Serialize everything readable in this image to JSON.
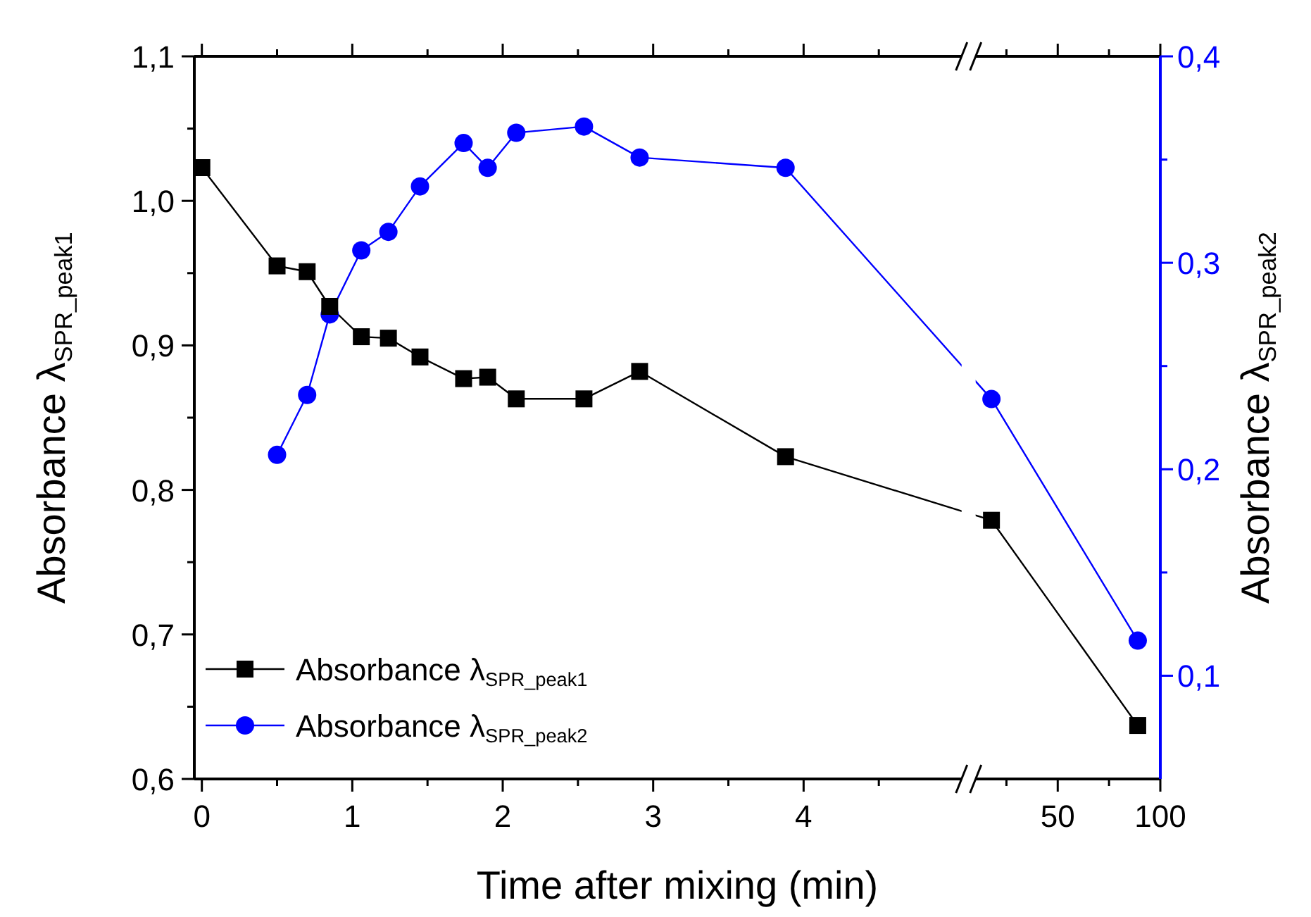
{
  "chart_data": [
    {
      "type": "line",
      "xlabel": "Time after mixing (min)",
      "ylabel": "Absorbance λ$_{SPR_peak1}$",
      "legend": "bottom left",
      "tick_labels": [
        "x",
        "y"
      ],
      "line_style": "solid",
      "xlim": [
        -0.05,
        5.05
      ],
      "xticks": [
        0,
        {
          "value": 0.5,
          "label": null
        },
        1,
        {
          "value": 1.5,
          "label": null
        },
        2,
        {
          "value": 2.5,
          "label": null
        },
        3,
        {
          "value": 3.5,
          "label": null
        },
        4,
        {
          "value": 4.5,
          "label": null
        }
      ],
      "ylim": [
        0.6,
        1.1
      ],
      "yticks": [
        {
          "value": 0.6,
          "label": "0,6"
        },
        {
          "value": 0.65,
          "label": null
        },
        {
          "value": 0.7,
          "label": "0,7"
        },
        {
          "value": 0.75,
          "label": null
        },
        {
          "value": 0.8,
          "label": "0,8"
        },
        {
          "value": 0.85,
          "label": null
        },
        {
          "value": 0.9,
          "label": "0,9"
        },
        {
          "value": 0.95,
          "label": null
        },
        {
          "value": 1.0,
          "label": "1,0"
        },
        {
          "value": 1.05,
          "label": null
        },
        {
          "value": 1.1,
          "label": "1,1"
        }
      ],
      "y2lim": [
        0.05,
        0.4
      ],
      "series": [
        {
          "name": "Absorbance λ$_{SPR_peak1}$",
          "color": "#000000",
          "marker": "square",
          "x": [
            0,
            0.5,
            0.7,
            0.85,
            1.06,
            1.24,
            1.45,
            1.74,
            1.9,
            2.09,
            2.54,
            2.91,
            3.88
          ],
          "values": [
            1.023,
            0.955,
            0.951,
            0.927,
            0.906,
            0.905,
            0.892,
            0.877,
            0.878,
            0.863,
            0.863,
            0.882,
            0.823
          ]
        },
        {
          "name": "Absorbance λ$_{SPR_peak2}$",
          "color": "#0000ff",
          "marker": "circle",
          "axis": "y2",
          "x": [
            0.5,
            0.7,
            0.85,
            1.06,
            1.24,
            1.45,
            1.74,
            1.9,
            2.09,
            2.54,
            2.91,
            3.88
          ],
          "values": [
            0.207,
            0.236,
            0.275,
            0.306,
            0.315,
            0.337,
            0.358,
            0.346,
            0.363,
            0.366,
            0.351,
            0.346
          ]
        }
      ]
    },
    {
      "type": "line",
      "y2label": "Absorbance λ$_{SPR_peak2}$",
      "tick_labels": [
        "x",
        "y2"
      ],
      "line_style": "solid",
      "xlim": [
        10,
        100
      ],
      "xticks": [
        {
          "value": 25,
          "label": null
        },
        50,
        {
          "value": 75,
          "label": null
        },
        100
      ],
      "ylim": [
        0.6,
        1.1
      ],
      "y2lim": [
        0.05,
        0.4
      ],
      "y2ticks": [
        {
          "value": 0.1,
          "label": "0,1"
        },
        {
          "value": 0.15,
          "label": null
        },
        {
          "value": 0.2,
          "label": "0,2"
        },
        {
          "value": 0.25,
          "label": null
        },
        {
          "value": 0.3,
          "label": "0,3"
        },
        {
          "value": 0.35,
          "label": null
        },
        {
          "value": 0.4,
          "label": "0,4"
        }
      ],
      "series": [
        {
          "color": "#000000",
          "marker": "square",
          "x": [
            17.7,
            89
          ],
          "values": [
            0.779,
            0.637
          ]
        },
        {
          "color": "#0000ff",
          "marker": "circle",
          "axis": "y2",
          "x": [
            17.7,
            89
          ],
          "values": [
            0.234,
            0.117
          ]
        }
      ]
    }
  ]
}
